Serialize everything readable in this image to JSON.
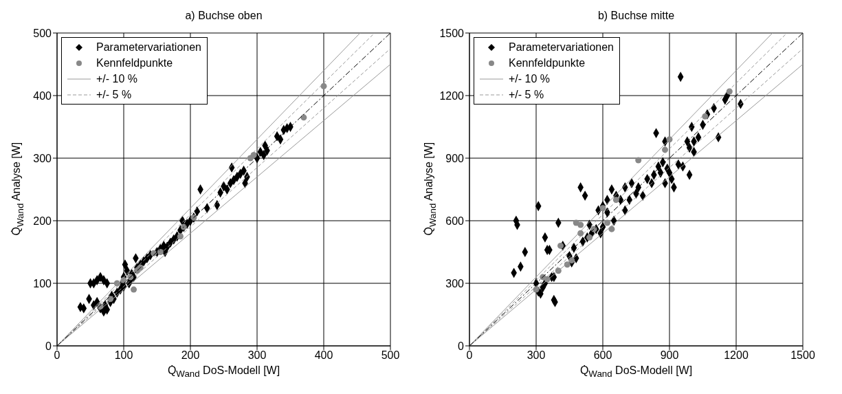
{
  "chart_data": [
    {
      "type": "scatter",
      "title": "a) Buchse oben",
      "xlabel": "Q̇$_{Wand}$ DoS-Modell [W]",
      "ylabel": "Q̇$_{Wand}$ Analyse [W]",
      "xlim": [
        0,
        500
      ],
      "ylim": [
        0,
        500
      ],
      "xticks": [
        0,
        100,
        200,
        300,
        400,
        500
      ],
      "yticks": [
        0,
        100,
        200,
        300,
        400,
        500
      ],
      "grid": true,
      "legend": "top left",
      "series": [
        {
          "name": "Parametervariationen",
          "color": "#000000",
          "marker": "diamond",
          "x": [
            35,
            40,
            50,
            55,
            60,
            65,
            70,
            75,
            48,
            55,
            60,
            65,
            70,
            72,
            75,
            80,
            82,
            85,
            90,
            95,
            98,
            100,
            100,
            102,
            105,
            108,
            110,
            112,
            115,
            120,
            118,
            125,
            130,
            135,
            140,
            150,
            155,
            160,
            162,
            165,
            170,
            175,
            180,
            185,
            188,
            190,
            195,
            200,
            205,
            210,
            215,
            225,
            240,
            245,
            250,
            255,
            260,
            262,
            265,
            270,
            275,
            280,
            282,
            285,
            300,
            305,
            310,
            312,
            315,
            330,
            335,
            340,
            345,
            350
          ],
          "values": [
            62,
            60,
            100,
            100,
            105,
            110,
            105,
            100,
            75,
            65,
            70,
            60,
            55,
            65,
            58,
            70,
            80,
            75,
            85,
            90,
            100,
            110,
            95,
            130,
            120,
            100,
            105,
            115,
            110,
            125,
            140,
            130,
            135,
            140,
            145,
            150,
            155,
            160,
            150,
            158,
            165,
            170,
            175,
            185,
            200,
            190,
            195,
            200,
            205,
            215,
            250,
            220,
            225,
            245,
            255,
            250,
            260,
            285,
            265,
            270,
            275,
            280,
            260,
            270,
            300,
            310,
            305,
            320,
            312,
            335,
            330,
            345,
            348,
            350
          ]
        },
        {
          "name": "Kennfeldpunkte",
          "color": "#888888",
          "marker": "circle",
          "x": [
            65,
            80,
            90,
            100,
            110,
            115,
            120,
            125,
            145,
            155,
            185,
            190,
            205,
            290,
            295,
            370,
            400
          ],
          "values": [
            63,
            75,
            100,
            105,
            110,
            90,
            120,
            125,
            148,
            150,
            175,
            190,
            205,
            300,
            305,
            365,
            415
          ]
        },
        {
          "type": "line",
          "name": "+/- 10 %",
          "color": "#999999",
          "line_style": "solid",
          "x": [
            0,
            454.5
          ],
          "values": [
            0,
            500
          ]
        },
        {
          "type": "line",
          "color": "#999999",
          "line_style": "solid",
          "x": [
            0,
            500
          ],
          "values": [
            0,
            450
          ]
        },
        {
          "type": "line",
          "name": "+/- 5 %",
          "color": "#999999",
          "line_style": "dashed",
          "x": [
            0,
            476.2
          ],
          "values": [
            0,
            500
          ]
        },
        {
          "type": "line",
          "color": "#999999",
          "line_style": "dashed",
          "x": [
            0,
            500
          ],
          "values": [
            0,
            475
          ]
        },
        {
          "type": "line",
          "color": "#000000",
          "line_style": "dotted",
          "x": [
            0,
            500
          ],
          "values": [
            0,
            500
          ]
        }
      ]
    },
    {
      "type": "scatter",
      "title": "b) Buchse mitte",
      "xlabel": "Q̇$_{Wand}$ DoS-Modell [W]",
      "ylabel": "Q̇$_{Wand}$ Analyse [W]",
      "xlim": [
        0,
        1500
      ],
      "ylim": [
        0,
        1500
      ],
      "xticks": [
        0,
        300,
        600,
        900,
        1200,
        1500
      ],
      "yticks": [
        0,
        300,
        600,
        900,
        1200,
        1500
      ],
      "grid": true,
      "legend": "top left",
      "series": [
        {
          "name": "Parametervariationen",
          "color": "#000000",
          "marker": "diamond",
          "x": [
            200,
            210,
            215,
            230,
            250,
            310,
            300,
            310,
            320,
            330,
            340,
            350,
            360,
            370,
            380,
            385,
            400,
            420,
            450,
            480,
            500,
            520,
            510,
            530,
            550,
            570,
            590,
            600,
            600,
            620,
            650,
            660,
            680,
            700,
            720,
            750,
            760,
            780,
            800,
            820,
            830,
            850,
            860,
            870,
            880,
            890,
            900,
            910,
            920,
            940,
            950,
            960,
            980,
            990,
            1000,
            1010,
            1030,
            1050,
            1070,
            1100,
            1120,
            1150,
            1160,
            1220,
            460,
            470,
            540,
            580,
            620,
            640,
            700,
            730,
            840,
            880,
            990,
            1010,
            380,
            340
          ],
          "values": [
            350,
            600,
            580,
            380,
            450,
            670,
            300,
            260,
            250,
            280,
            520,
            460,
            460,
            330,
            220,
            210,
            590,
            480,
            430,
            420,
            760,
            720,
            500,
            520,
            540,
            560,
            540,
            570,
            670,
            640,
            600,
            720,
            700,
            650,
            700,
            730,
            760,
            720,
            800,
            780,
            820,
            860,
            830,
            880,
            780,
            850,
            830,
            800,
            760,
            870,
            1290,
            860,
            980,
            950,
            1050,
            980,
            1000,
            1060,
            1110,
            1140,
            1000,
            1180,
            1200,
            1160,
            400,
            470,
            580,
            650,
            700,
            750,
            760,
            780,
            1020,
            980,
            820,
            930,
            330,
            300
          ]
        },
        {
          "name": "Kennfeldpunkte",
          "color": "#888888",
          "marker": "circle",
          "x": [
            300,
            330,
            350,
            400,
            440,
            460,
            480,
            500,
            540,
            560,
            600,
            620,
            640,
            660,
            760,
            880,
            900,
            1060,
            1170,
            410,
            500
          ],
          "values": [
            270,
            330,
            320,
            360,
            390,
            410,
            590,
            580,
            520,
            560,
            660,
            590,
            560,
            700,
            890,
            940,
            990,
            1100,
            1220,
            480,
            540
          ]
        },
        {
          "type": "line",
          "name": "+/- 10 %",
          "color": "#999999",
          "line_style": "solid",
          "x": [
            0,
            1363.6
          ],
          "values": [
            0,
            1500
          ]
        },
        {
          "type": "line",
          "color": "#999999",
          "line_style": "solid",
          "x": [
            0,
            1500
          ],
          "values": [
            0,
            1350
          ]
        },
        {
          "type": "line",
          "name": "+/- 5 %",
          "color": "#999999",
          "line_style": "dashed",
          "x": [
            0,
            1428.6
          ],
          "values": [
            0,
            1500
          ]
        },
        {
          "type": "line",
          "color": "#999999",
          "line_style": "dashed",
          "x": [
            0,
            1500
          ],
          "values": [
            0,
            1425
          ]
        },
        {
          "type": "line",
          "color": "#000000",
          "line_style": "dotted",
          "x": [
            0,
            1500
          ],
          "values": [
            0,
            1500
          ]
        }
      ]
    }
  ]
}
